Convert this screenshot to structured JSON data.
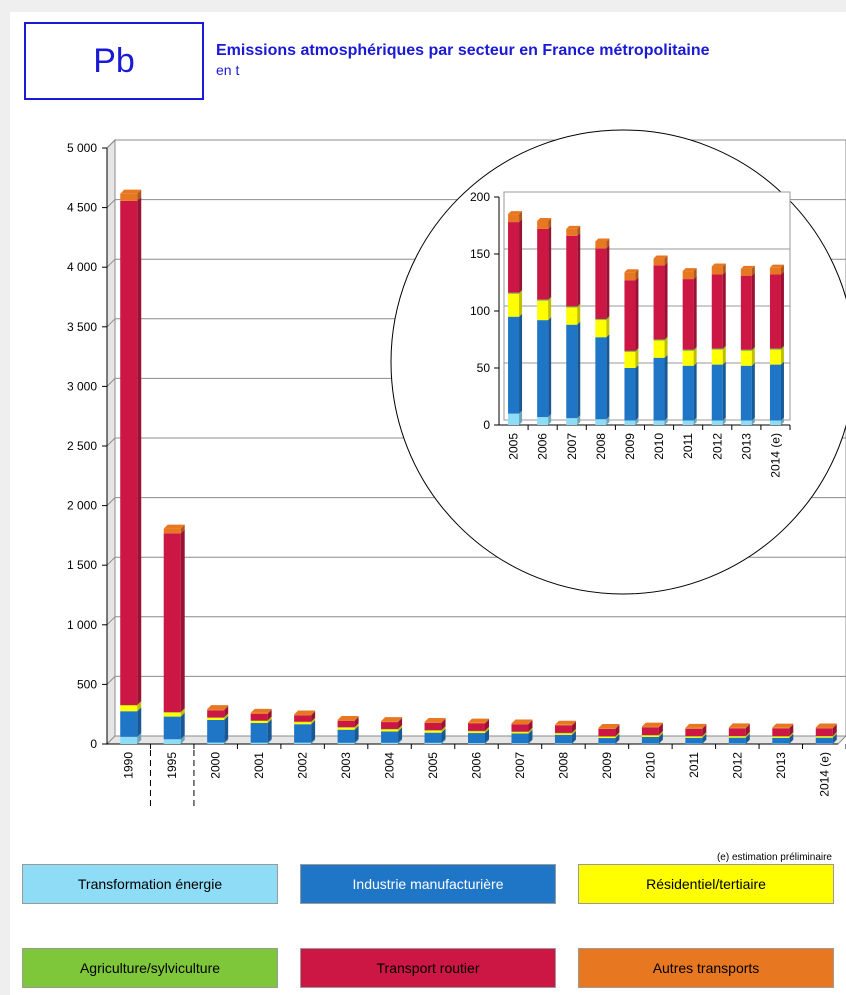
{
  "header": {
    "badge": "Pb",
    "title": "Emissions atmosphériques par secteur en France métropolitaine",
    "subtitle": "en t"
  },
  "note": "(e) estimation préliminaire",
  "legend": [
    {
      "label": "Transformation énergie",
      "color": "#8fdcf6",
      "text_color": "#000000"
    },
    {
      "label": "Industrie manufacturière",
      "color": "#1f75c6",
      "text_color": "#ffffff"
    },
    {
      "label": "Résidentiel/tertiaire",
      "color": "#ffff00",
      "text_color": "#000000"
    },
    {
      "label": "Agriculture/sylviculture",
      "color": "#7ec63a",
      "text_color": "#000000"
    },
    {
      "label": "Transport routier",
      "color": "#cc1744",
      "text_color": "#000000"
    },
    {
      "label": "Autres transports",
      "color": "#e87722",
      "text_color": "#000000"
    }
  ],
  "chart_data": [
    {
      "type": "bar",
      "stacked": true,
      "title": "",
      "ylim": [
        0,
        5000
      ],
      "yticks": [
        "0",
        "500",
        "1 000",
        "1 500",
        "2 000",
        "2 500",
        "3 000",
        "3 500",
        "4 000",
        "4 500",
        "5 000"
      ],
      "grid": true,
      "categories": [
        "1990",
        "1995",
        "2000",
        "2001",
        "2002",
        "2003",
        "2004",
        "2005",
        "2006",
        "2007",
        "2008",
        "2009",
        "2010",
        "2011",
        "2012",
        "2013",
        "2014 (e)"
      ],
      "series": [
        {
          "name": "Transformation énergie",
          "values": [
            60,
            40,
            12,
            11,
            11,
            10,
            10,
            10,
            7,
            6,
            5,
            4,
            4,
            4,
            4,
            4,
            4
          ]
        },
        {
          "name": "Industrie manufacturière",
          "values": [
            215,
            190,
            190,
            165,
            155,
            110,
            95,
            85,
            85,
            82,
            72,
            46,
            55,
            48,
            49,
            48,
            49
          ]
        },
        {
          "name": "Résidentiel/tertiaire",
          "values": [
            50,
            35,
            20,
            20,
            20,
            20,
            20,
            20,
            17,
            15,
            15,
            14,
            15,
            13,
            13,
            13,
            13
          ]
        },
        {
          "name": "Agriculture/sylviculture",
          "values": [
            2,
            2,
            1,
            1,
            1,
            1,
            1,
            1,
            1,
            1,
            1,
            1,
            1,
            1,
            1,
            1,
            1
          ]
        },
        {
          "name": "Transport routier",
          "values": [
            4230,
            1500,
            60,
            55,
            53,
            52,
            58,
            62,
            62,
            62,
            62,
            62,
            65,
            62,
            65,
            65,
            65
          ]
        },
        {
          "name": "Autres transports",
          "values": [
            60,
            40,
            10,
            9,
            8,
            8,
            8,
            7,
            7,
            6,
            6,
            7,
            6,
            7,
            7,
            6,
            6
          ]
        }
      ]
    },
    {
      "type": "bar",
      "stacked": true,
      "title": "",
      "ylim": [
        0,
        200
      ],
      "yticks": [
        "0",
        "50",
        "100",
        "150",
        "200"
      ],
      "grid": true,
      "categories": [
        "2005",
        "2006",
        "2007",
        "2008",
        "2009",
        "2010",
        "2011",
        "2012",
        "2013",
        "2014 (e)"
      ],
      "series": [
        {
          "name": "Transformation énergie",
          "values": [
            10,
            7,
            6,
            5,
            4,
            4,
            4,
            4,
            4,
            4
          ]
        },
        {
          "name": "Industrie manufacturière",
          "values": [
            85,
            85,
            82,
            72,
            46,
            55,
            48,
            49,
            48,
            49
          ]
        },
        {
          "name": "Résidentiel/tertiaire",
          "values": [
            20,
            17,
            15,
            15,
            14,
            15,
            13,
            13,
            13,
            13
          ]
        },
        {
          "name": "Agriculture/sylviculture",
          "values": [
            1,
            1,
            1,
            1,
            1,
            1,
            1,
            1,
            1,
            1
          ]
        },
        {
          "name": "Transport routier",
          "values": [
            62,
            62,
            62,
            62,
            62,
            65,
            62,
            65,
            65,
            65
          ]
        },
        {
          "name": "Autres transports",
          "values": [
            7,
            7,
            6,
            6,
            7,
            6,
            7,
            7,
            6,
            6
          ]
        }
      ]
    }
  ]
}
